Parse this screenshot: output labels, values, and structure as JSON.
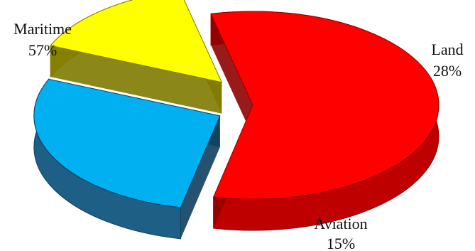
{
  "chart_data": {
    "type": "pie",
    "title": "",
    "slices": [
      {
        "label": "Maritime",
        "value": 57,
        "percent_label": "57%",
        "color": "#ff0000",
        "side_color": "#bf0000",
        "dark_color": "#8f0000"
      },
      {
        "label": "Land",
        "value": 28,
        "percent_label": "28%",
        "color": "#00b0f0",
        "side_color": "#1e5f86",
        "dark_color": "#0f3f5f"
      },
      {
        "label": "Aviation",
        "value": 15,
        "percent_label": "15%",
        "color": "#ffff00",
        "side_color": "#b8b300",
        "dark_color": "#7f7a00"
      }
    ],
    "legend": "none",
    "style": "3d-exploded-pie"
  }
}
